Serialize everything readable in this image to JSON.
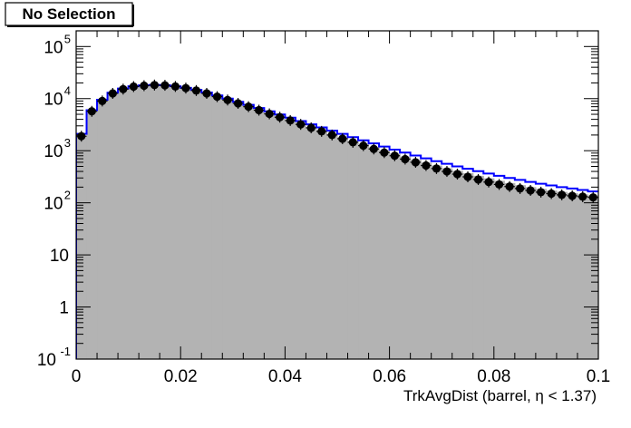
{
  "chart_data": {
    "type": "bar",
    "title": "No Selection",
    "xlabel": "TrkAvgDist (barrel,  η < 1.37)",
    "ylabel": "",
    "log_y": true,
    "xlim": [
      0,
      0.1
    ],
    "ylim": [
      0.1,
      200000
    ],
    "x_ticks": [
      {
        "value": 0,
        "label": "0"
      },
      {
        "value": 0.02,
        "label": "0.02"
      },
      {
        "value": 0.04,
        "label": "0.04"
      },
      {
        "value": 0.06,
        "label": "0.06"
      },
      {
        "value": 0.08,
        "label": "0.08"
      },
      {
        "value": 0.1,
        "label": "0.1"
      }
    ],
    "y_ticks": [
      {
        "value": 0.1,
        "base": "10",
        "exp": "-1"
      },
      {
        "value": 1,
        "base": "1",
        "exp": ""
      },
      {
        "value": 10,
        "base": "10",
        "exp": ""
      },
      {
        "value": 100,
        "base": "10",
        "exp": "2"
      },
      {
        "value": 1000,
        "base": "10",
        "exp": "3"
      },
      {
        "value": 10000,
        "base": "10",
        "exp": "4"
      },
      {
        "value": 100000,
        "base": "10",
        "exp": "5"
      }
    ],
    "bin_edges": [
      0,
      0.002,
      0.004,
      0.006,
      0.008,
      0.01,
      0.012,
      0.014,
      0.016,
      0.018,
      0.02,
      0.022,
      0.024,
      0.026,
      0.028,
      0.03,
      0.032,
      0.034,
      0.036,
      0.038,
      0.04,
      0.042,
      0.044,
      0.046,
      0.048,
      0.05,
      0.052,
      0.054,
      0.056,
      0.058,
      0.06,
      0.062,
      0.064,
      0.066,
      0.068,
      0.07,
      0.072,
      0.074,
      0.076,
      0.078,
      0.08,
      0.082,
      0.084,
      0.086,
      0.088,
      0.09,
      0.092,
      0.094,
      0.096,
      0.098,
      0.1
    ],
    "series": [
      {
        "style": "filled-histogram",
        "color": "#b3b3b3",
        "values": [
          1900,
          5600,
          9000,
          12500,
          15000,
          16800,
          17500,
          18000,
          17800,
          17000,
          15800,
          14300,
          12700,
          11000,
          9500,
          8200,
          7100,
          6100,
          5200,
          4500,
          3900,
          3300,
          2850,
          2450,
          2100,
          1800,
          1550,
          1350,
          1170,
          1010,
          880,
          770,
          670,
          590,
          520,
          460,
          410,
          370,
          330,
          295,
          265,
          240,
          218,
          200,
          185,
          172,
          162,
          153,
          145,
          138
        ]
      },
      {
        "style": "step-outline",
        "color": "#0000ff",
        "values": [
          2100,
          6000,
          9500,
          13000,
          15600,
          17300,
          18000,
          18300,
          18100,
          17300,
          16100,
          14700,
          13100,
          11500,
          10000,
          8700,
          7600,
          6600,
          5700,
          4950,
          4300,
          3700,
          3200,
          2800,
          2420,
          2100,
          1820,
          1580,
          1380,
          1200,
          1050,
          920,
          810,
          715,
          630,
          560,
          500,
          450,
          405,
          365,
          330,
          300,
          275,
          252,
          232,
          215,
          200,
          188,
          176,
          165
        ]
      },
      {
        "style": "markers-with-errors",
        "color": "#000000",
        "values": [
          1900,
          5700,
          9000,
          12600,
          15200,
          17000,
          17700,
          18200,
          18000,
          17100,
          15900,
          14300,
          12600,
          10900,
          9400,
          8100,
          7000,
          6000,
          5100,
          4400,
          3800,
          3200,
          2750,
          2350,
          2000,
          1700,
          1450,
          1250,
          1080,
          920,
          800,
          690,
          600,
          520,
          455,
          400,
          355,
          315,
          280,
          250,
          225,
          205,
          188,
          173,
          160,
          150,
          142,
          136,
          131,
          127
        ]
      }
    ]
  }
}
